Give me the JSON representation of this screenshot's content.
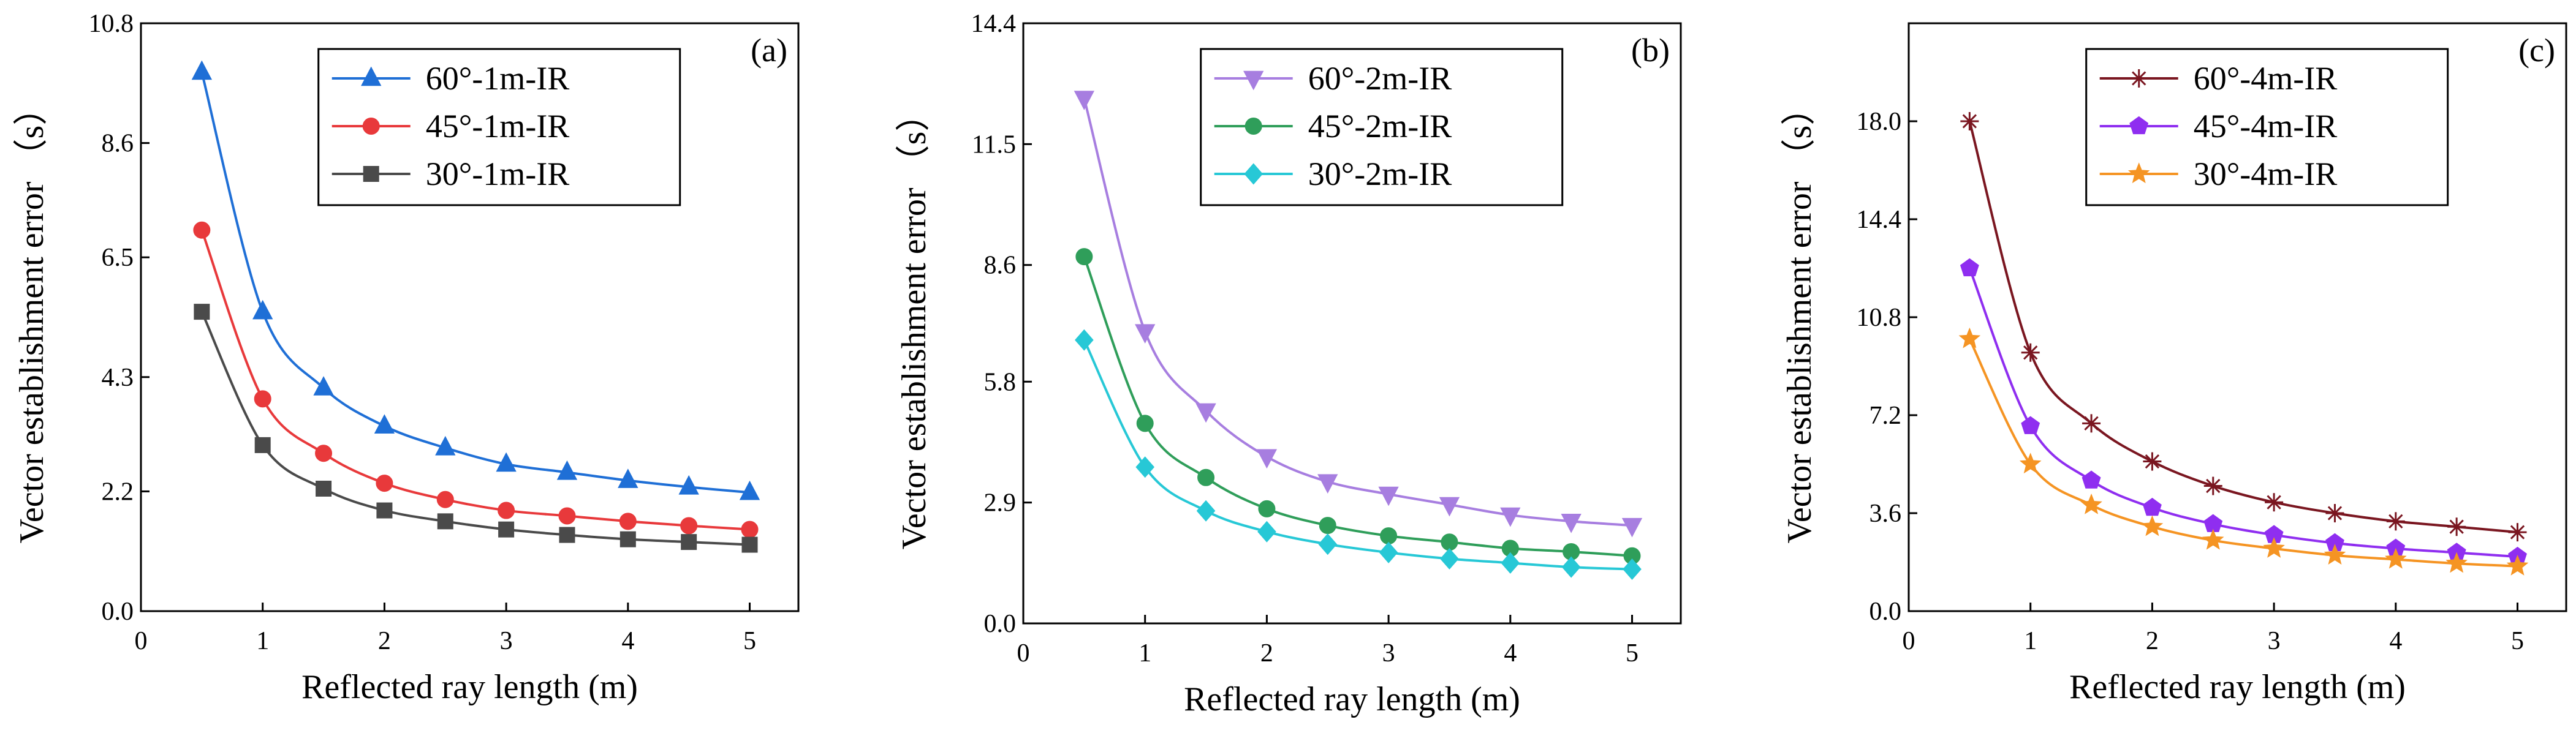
{
  "chart_data": [
    {
      "type": "line",
      "panel_label": "(a)",
      "xlabel": "Reflected ray length (m)",
      "ylabel": "Vector establishment  error （s）",
      "xlim": [
        0,
        5.4
      ],
      "ylim": [
        0,
        10.8
      ],
      "xticks": [
        0,
        1,
        2,
        3,
        4,
        5
      ],
      "xtick_labels": [
        "0",
        "1",
        "2",
        "3",
        "4",
        "5"
      ],
      "yticks": [
        0.0,
        2.2,
        4.3,
        6.5,
        8.6,
        10.8
      ],
      "ytick_labels": [
        "0.0",
        "2.2",
        "4.3",
        "6.5",
        "8.6",
        "10.8"
      ],
      "legend_position": "top-center",
      "x": [
        0.5,
        1.0,
        1.5,
        2.0,
        2.5,
        3.0,
        3.5,
        4.0,
        4.5,
        5.0
      ],
      "series": [
        {
          "name": "60°-1m-IR",
          "color": "#1f6fd6",
          "marker": "triangle-up",
          "values": [
            9.9,
            5.5,
            4.1,
            3.4,
            3.0,
            2.7,
            2.55,
            2.4,
            2.28,
            2.18
          ]
        },
        {
          "name": "45°-1m-IR",
          "color": "#e8393b",
          "marker": "circle",
          "values": [
            7.0,
            3.9,
            2.9,
            2.35,
            2.05,
            1.85,
            1.75,
            1.65,
            1.57,
            1.5
          ]
        },
        {
          "name": "30°-1m-IR",
          "color": "#4a4a4a",
          "marker": "square",
          "values": [
            5.5,
            3.05,
            2.25,
            1.85,
            1.65,
            1.5,
            1.4,
            1.32,
            1.27,
            1.22
          ]
        }
      ]
    },
    {
      "type": "line",
      "panel_label": "(b)",
      "xlabel": "Reflected ray length (m)",
      "ylabel": "Vector establishment  error （s）",
      "xlim": [
        0,
        5.4
      ],
      "ylim": [
        0,
        14.4
      ],
      "xticks": [
        0,
        1,
        2,
        3,
        4,
        5
      ],
      "xtick_labels": [
        "0",
        "1",
        "2",
        "3",
        "4",
        "5"
      ],
      "yticks": [
        0.0,
        2.9,
        5.8,
        8.6,
        11.5,
        14.4
      ],
      "ytick_labels": [
        "0.0",
        "2.9",
        "5.8",
        "8.6",
        "11.5",
        "14.4"
      ],
      "legend_position": "top-center",
      "x": [
        0.5,
        1.0,
        1.5,
        2.0,
        2.5,
        3.0,
        3.5,
        4.0,
        4.5,
        5.0
      ],
      "series": [
        {
          "name": "60°-2m-IR",
          "color": "#a77ee0",
          "marker": "triangle-down",
          "values": [
            12.6,
            7.0,
            5.1,
            4.0,
            3.4,
            3.1,
            2.85,
            2.6,
            2.45,
            2.35
          ]
        },
        {
          "name": "45°-2m-IR",
          "color": "#2f9e5a",
          "marker": "circle",
          "values": [
            8.8,
            4.8,
            3.5,
            2.75,
            2.35,
            2.1,
            1.95,
            1.8,
            1.72,
            1.62
          ]
        },
        {
          "name": "30°-2m-IR",
          "color": "#27c8d6",
          "marker": "diamond",
          "values": [
            6.8,
            3.75,
            2.7,
            2.2,
            1.9,
            1.7,
            1.55,
            1.45,
            1.35,
            1.3
          ]
        }
      ]
    },
    {
      "type": "line",
      "panel_label": "(c)",
      "xlabel": "Reflected ray length (m)",
      "ylabel": "Vector establishment  error （s）",
      "xlim": [
        0,
        5.4
      ],
      "ylim": [
        0,
        21.6
      ],
      "xticks": [
        0,
        1,
        2,
        3,
        4,
        5
      ],
      "xtick_labels": [
        "0",
        "1",
        "2",
        "3",
        "4",
        "5"
      ],
      "yticks": [
        0.0,
        3.6,
        7.2,
        10.8,
        14.4,
        18.0
      ],
      "ytick_labels": [
        "0.0",
        "3.6",
        "7.2",
        "10.8",
        "14.4",
        "18.0"
      ],
      "legend_position": "top-center",
      "x": [
        0.5,
        1.0,
        1.5,
        2.0,
        2.5,
        3.0,
        3.5,
        4.0,
        4.5,
        5.0
      ],
      "series": [
        {
          "name": "60°-4m-IR",
          "color": "#7a1620",
          "marker": "asterisk",
          "values": [
            18.0,
            9.5,
            6.9,
            5.5,
            4.6,
            4.0,
            3.6,
            3.3,
            3.1,
            2.9
          ]
        },
        {
          "name": "45°-4m-IR",
          "color": "#8f2ef0",
          "marker": "pentagon",
          "values": [
            12.6,
            6.8,
            4.8,
            3.8,
            3.2,
            2.8,
            2.5,
            2.3,
            2.15,
            2.0
          ]
        },
        {
          "name": "30°-4m-IR",
          "color": "#f59423",
          "marker": "star",
          "values": [
            10.0,
            5.4,
            3.9,
            3.1,
            2.6,
            2.3,
            2.05,
            1.9,
            1.75,
            1.65
          ]
        }
      ]
    }
  ]
}
